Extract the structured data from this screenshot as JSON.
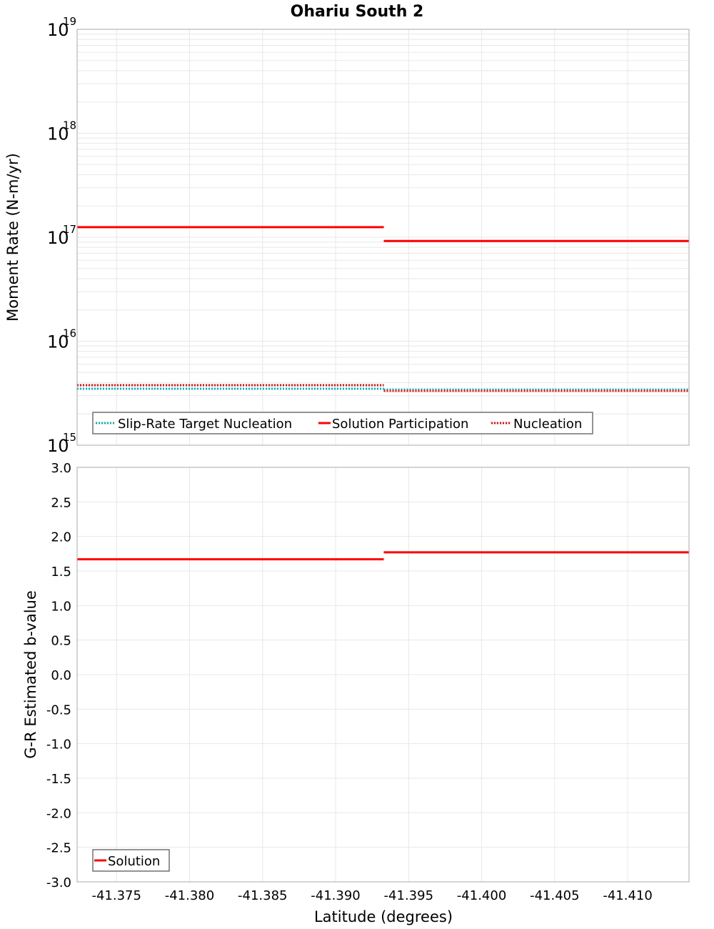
{
  "title": "Ohariu South 2",
  "chart_data": [
    {
      "type": "line",
      "subtype": "step",
      "title": "Ohariu South 2",
      "xlabel": "Latitude (degrees)",
      "ylabel": "Moment Rate (N-m/yr)",
      "yscale": "log",
      "ylim": [
        1000000000000000.0,
        1e+19
      ],
      "xlim": [
        -41.3723,
        -41.4142
      ],
      "x_inverted": true,
      "grid": true,
      "y_ticks": [
        {
          "base": "10",
          "exp": "15",
          "value": 1000000000000000.0
        },
        {
          "base": "10",
          "exp": "16",
          "value": 1e+16
        },
        {
          "base": "10",
          "exp": "17",
          "value": 1e+17
        },
        {
          "base": "10",
          "exp": "18",
          "value": 1e+18
        },
        {
          "base": "10",
          "exp": "19",
          "value": 1e+19
        }
      ],
      "legend_position": "lower-left",
      "series": [
        {
          "name": "Slip-Rate Target Nucleation",
          "color": "#00b4b4",
          "style": "dotted",
          "segments": [
            {
              "x0": -41.3723,
              "x1": -41.3933,
              "y": 3490000000000000.0
            },
            {
              "x0": -41.3933,
              "x1": -41.4142,
              "y": 3430000000000000.0
            }
          ]
        },
        {
          "name": "Solution Participation",
          "color": "#ff0000",
          "style": "solid",
          "segments": [
            {
              "x0": -41.3723,
              "x1": -41.3933,
              "y": 1.25e+17
            },
            {
              "x0": -41.3933,
              "x1": -41.4142,
              "y": 9.2e+16
            }
          ]
        },
        {
          "name": "Nucleation",
          "color": "#ff0000",
          "style": "dotted",
          "segments": [
            {
              "x0": -41.3723,
              "x1": -41.3933,
              "y": 3780000000000000.0
            },
            {
              "x0": -41.3933,
              "x1": -41.4142,
              "y": 3330000000000000.0
            }
          ]
        }
      ]
    },
    {
      "type": "line",
      "subtype": "step",
      "title": "",
      "xlabel": "Latitude (degrees)",
      "ylabel": "G-R Estimated b-value",
      "yscale": "linear",
      "ylim": [
        -3.0,
        3.0
      ],
      "xlim": [
        -41.3723,
        -41.4142
      ],
      "x_inverted": true,
      "grid": true,
      "y_ticks": [
        "3.0",
        "2.5",
        "2.0",
        "1.5",
        "1.0",
        "0.5",
        "0.0",
        "-0.5",
        "-1.0",
        "-1.5",
        "-2.0",
        "-2.5",
        "-3.0"
      ],
      "x_ticks": [
        "-41.375",
        "-41.380",
        "-41.385",
        "-41.390",
        "-41.395",
        "-41.400",
        "-41.405",
        "-41.410"
      ],
      "legend_position": "lower-left",
      "series": [
        {
          "name": "Solution",
          "color": "#ff0000",
          "style": "solid",
          "segments": [
            {
              "x0": -41.3723,
              "x1": -41.3933,
              "y": 1.67
            },
            {
              "x0": -41.3933,
              "x1": -41.4142,
              "y": 1.77
            }
          ]
        }
      ]
    }
  ],
  "x_axis": {
    "label": "Latitude (degrees)",
    "ticks": [
      -41.375,
      -41.38,
      -41.385,
      -41.39,
      -41.395,
      -41.4,
      -41.405,
      -41.41
    ],
    "tick_labels": [
      "-41.375",
      "-41.380",
      "-41.385",
      "-41.390",
      "-41.395",
      "-41.400",
      "-41.405",
      "-41.410"
    ]
  },
  "top_plot": {
    "ylabel": "Moment Rate (N-m/yr)",
    "legend": [
      "Slip-Rate Target Nucleation",
      "Solution Participation",
      "Nucleation"
    ]
  },
  "bottom_plot": {
    "ylabel": "G-R Estimated b-value",
    "legend": [
      "Solution"
    ]
  },
  "colors": {
    "grid": "#e8e8e8",
    "frame": "#a8a8a8",
    "red": "#ff0000",
    "cyan": "#00b4b4"
  }
}
